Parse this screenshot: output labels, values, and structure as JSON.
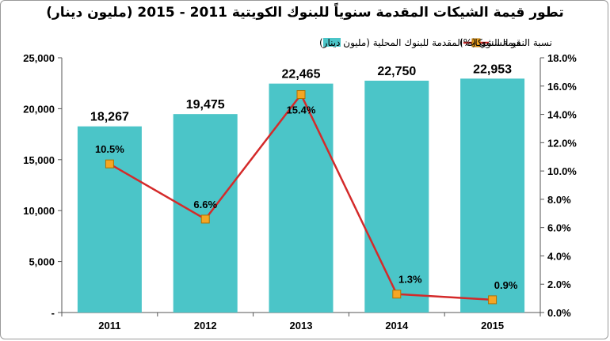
{
  "chart_data": {
    "type": "bar",
    "title": "تطور قيمة الشيكات المقدمة سنوياً للبنوك الكويتية 2011 - 2015 (مليون دينار)",
    "categories": [
      "2011",
      "2012",
      "2013",
      "2014",
      "2015"
    ],
    "series": [
      {
        "name": "قيمة الشيكات المقدمة للبنوك المحلية (مليون دينار)",
        "type": "bar",
        "axis": "left",
        "values": [
          18267,
          19475,
          22465,
          22750,
          22953
        ],
        "labels": [
          "18,267",
          "19,475",
          "22,465",
          "22,750",
          "22,953"
        ],
        "color": "#4bc5c8"
      },
      {
        "name": "نسبة النمو السنوي (%)",
        "type": "line",
        "axis": "right",
        "values": [
          10.5,
          6.6,
          15.4,
          1.3,
          0.9
        ],
        "labels": [
          "10.5%",
          "6.6%",
          "15.4%",
          "1.3%",
          "0.9%"
        ],
        "color": "#d42a2a",
        "marker_color": "#f5a623"
      }
    ],
    "y_left": {
      "min": 0,
      "max": 25000,
      "step": 5000,
      "ticks": [
        "-",
        "5,000",
        "10,000",
        "15,000",
        "20,000",
        "25,000"
      ]
    },
    "y_right": {
      "min": 0,
      "max": 18,
      "step": 2,
      "ticks": [
        "0.0%",
        "2.0%",
        "4.0%",
        "6.0%",
        "8.0%",
        "10.0%",
        "12.0%",
        "14.0%",
        "16.0%",
        "18.0%"
      ]
    },
    "grid": false,
    "legend_position": "top"
  }
}
